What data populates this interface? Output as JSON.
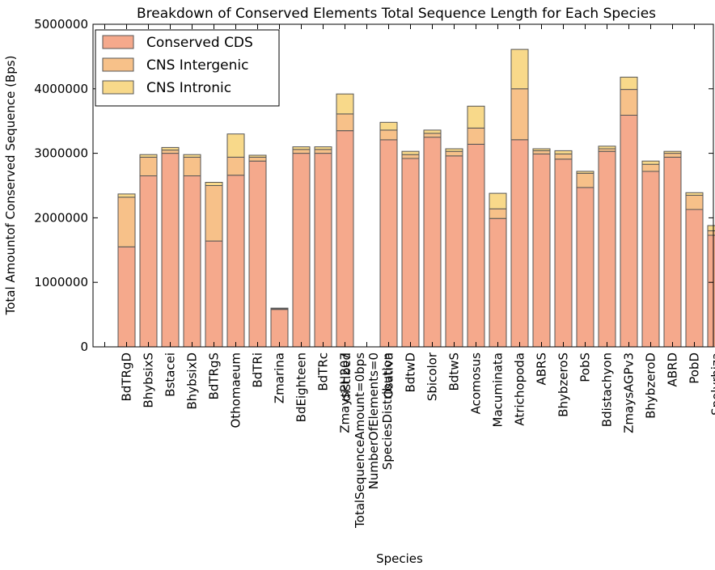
{
  "chart_data": {
    "type": "bar",
    "stacked": true,
    "title": "Breakdown of Conserved Elements Total Sequence Length for Each Species",
    "xlabel": "Species",
    "ylabel": "Total Amountof Conserved Sequence (Bps)",
    "ylim": [
      0,
      5000000
    ],
    "yticks": [
      "0",
      "1000000",
      "2000000",
      "3000000",
      "4000000",
      "5000000"
    ],
    "legend_position": "top-left",
    "categories": [
      "",
      "BdTRgD",
      "BhybsixS",
      "Bstacei",
      "BhybsixD",
      "BdTRgS",
      "Othomaeum",
      "BdTRi",
      "Zmarina",
      "BdEighteen",
      "BdTRc",
      "ZmaysPH207",
      "dist.bed\nTotalSequenceAmount=0bps\nNumberOfElements=0\nSpeciesDistribution",
      "Osativa",
      "BdtwD",
      "Sbicolor",
      "BdtwS",
      "Acomosus",
      "Macuminata",
      "Atrichopoda",
      "ABRS",
      "BhybzeroS",
      "PobS",
      "Bdistachyon",
      "ZmaysAGPv3",
      "BhybzeroD",
      "ABRD",
      "PobD",
      "Spolyrhiza"
    ],
    "series": [
      {
        "name": "Conserved CDS",
        "color": "#f5a98c",
        "values": [
          0,
          1550000,
          2650000,
          3000000,
          2650000,
          1640000,
          2660000,
          2880000,
          580000,
          3000000,
          3000000,
          3350000,
          0,
          3210000,
          2920000,
          3250000,
          2960000,
          3140000,
          1990000,
          3210000,
          2990000,
          2910000,
          2470000,
          3030000,
          3590000,
          2720000,
          2940000,
          2130000,
          1730000
        ]
      },
      {
        "name": "CNS Intergenic",
        "color": "#f7c189",
        "values": [
          0,
          770000,
          290000,
          50000,
          290000,
          860000,
          280000,
          60000,
          10000,
          60000,
          60000,
          260000,
          0,
          150000,
          60000,
          60000,
          70000,
          250000,
          150000,
          790000,
          50000,
          80000,
          220000,
          40000,
          400000,
          110000,
          60000,
          220000,
          70000
        ]
      },
      {
        "name": "CNS Intronic",
        "color": "#f8d98a",
        "values": [
          0,
          50000,
          40000,
          40000,
          40000,
          50000,
          360000,
          30000,
          10000,
          40000,
          40000,
          310000,
          0,
          120000,
          50000,
          50000,
          40000,
          340000,
          240000,
          610000,
          30000,
          50000,
          30000,
          40000,
          190000,
          50000,
          30000,
          40000,
          80000
        ]
      }
    ]
  }
}
